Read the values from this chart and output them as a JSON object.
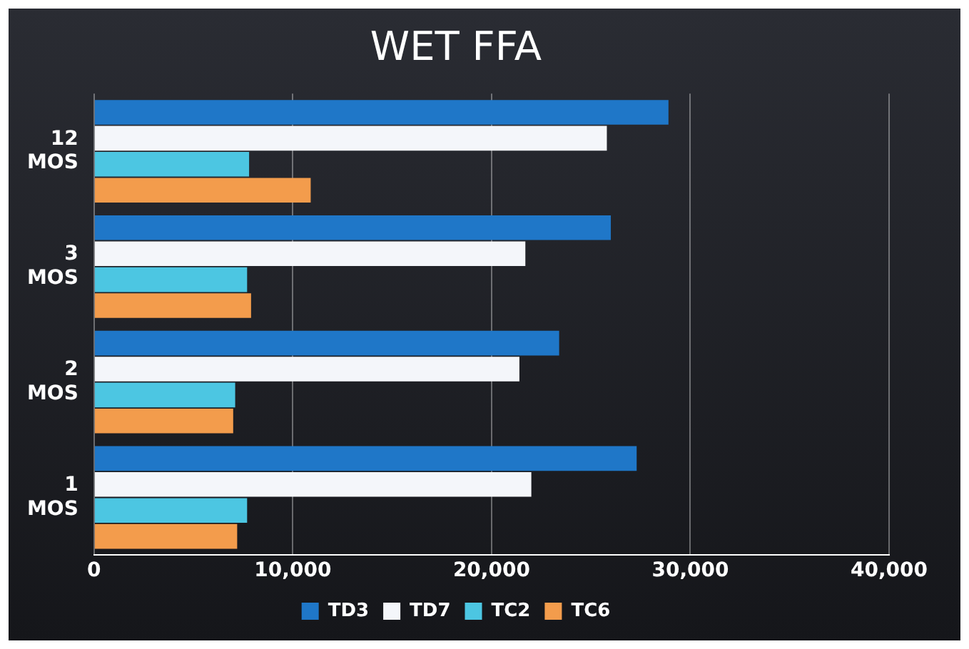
{
  "chart_data": {
    "type": "bar",
    "orientation": "horizontal",
    "title": "WET FFA",
    "categories": [
      "12 MOS",
      "3 MOS",
      "2 MOS",
      "1 MOS"
    ],
    "series": [
      {
        "name": "TD3",
        "color": "#1f77c8",
        "values": [
          28900,
          26000,
          23400,
          27300
        ]
      },
      {
        "name": "TD7",
        "color": "#f4f6fa",
        "values": [
          25800,
          21700,
          21400,
          22000
        ]
      },
      {
        "name": "TC2",
        "color": "#4cc6e2",
        "values": [
          7800,
          7700,
          7100,
          7700
        ]
      },
      {
        "name": "TC6",
        "color": "#f39c4c",
        "values": [
          10900,
          7900,
          7000,
          7200
        ]
      }
    ],
    "xlim": [
      0,
      40000
    ],
    "xticks": [
      {
        "value": 0,
        "label": "0"
      },
      {
        "value": 10000,
        "label": "10,000"
      },
      {
        "value": 20000,
        "label": "20,000"
      },
      {
        "value": 30000,
        "label": "30,000"
      },
      {
        "value": 40000,
        "label": "40,000"
      }
    ],
    "grid": "x",
    "legend": "bottom"
  }
}
